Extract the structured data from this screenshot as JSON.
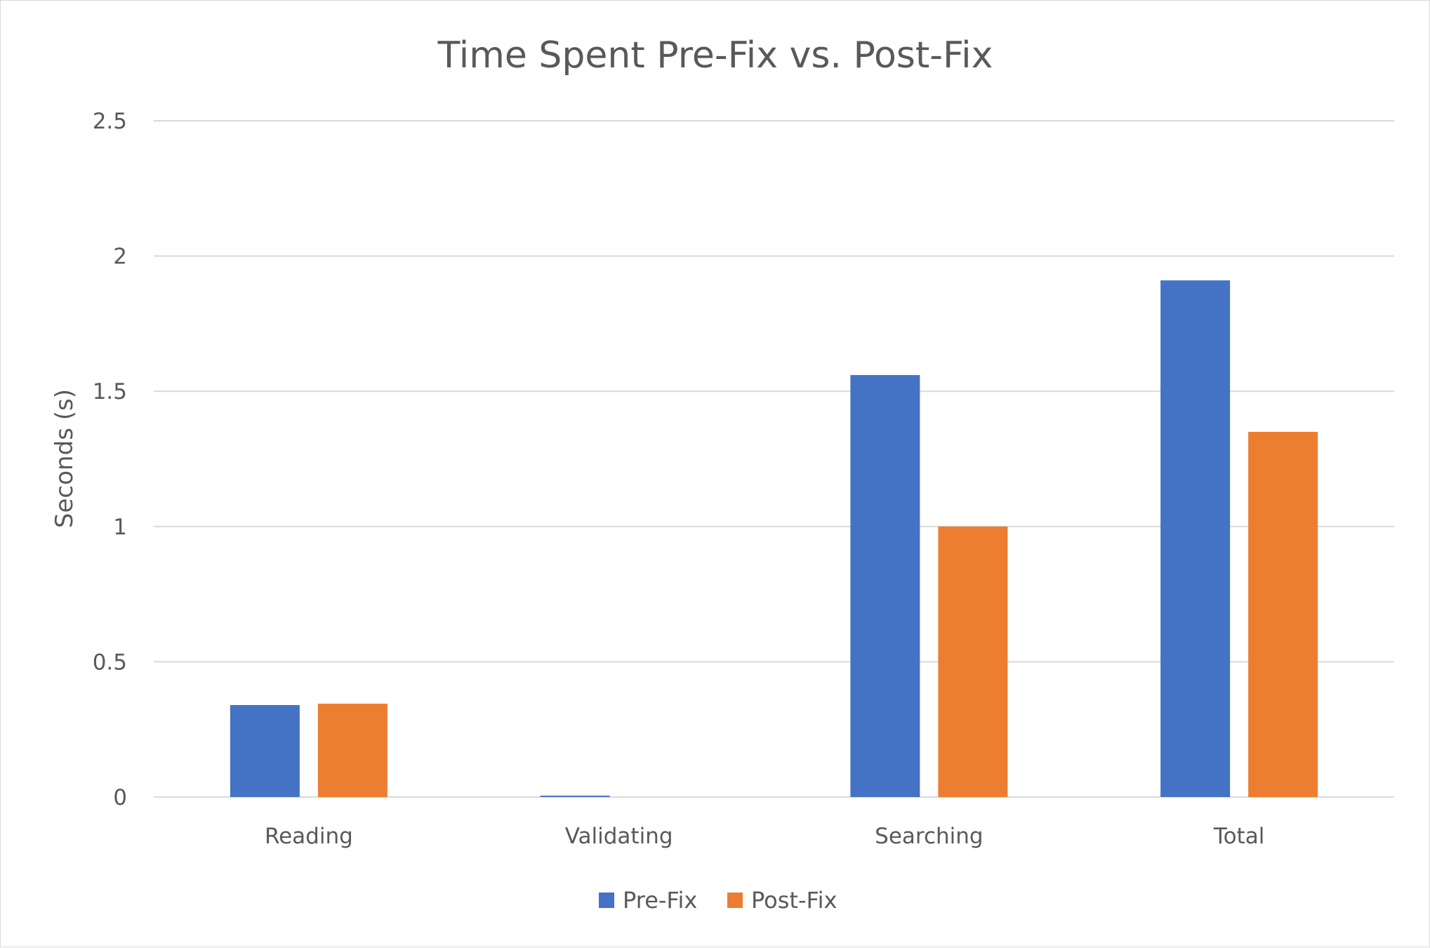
{
  "chart_data": {
    "type": "bar",
    "title": "Time Spent Pre-Fix vs. Post-Fix",
    "xlabel": "",
    "ylabel": "Seconds (s)",
    "categories": [
      "Reading",
      "Validating",
      "Searching",
      "Total"
    ],
    "series": [
      {
        "name": "Pre-Fix",
        "color": "#4472c4",
        "values": [
          0.34,
          0.005,
          1.56,
          1.91
        ]
      },
      {
        "name": "Post-Fix",
        "color": "#ed7d31",
        "values": [
          0.345,
          0,
          1.0,
          1.35
        ]
      }
    ],
    "ylim": [
      0,
      2.5
    ],
    "yticks": [
      "0",
      "0.5",
      "1",
      "1.5",
      "2",
      "2.5"
    ],
    "grid": true,
    "legend_position": "bottom",
    "colors": {
      "gridline": "#d9d9d9",
      "text": "#595959",
      "border": "#d9d9d9"
    }
  }
}
